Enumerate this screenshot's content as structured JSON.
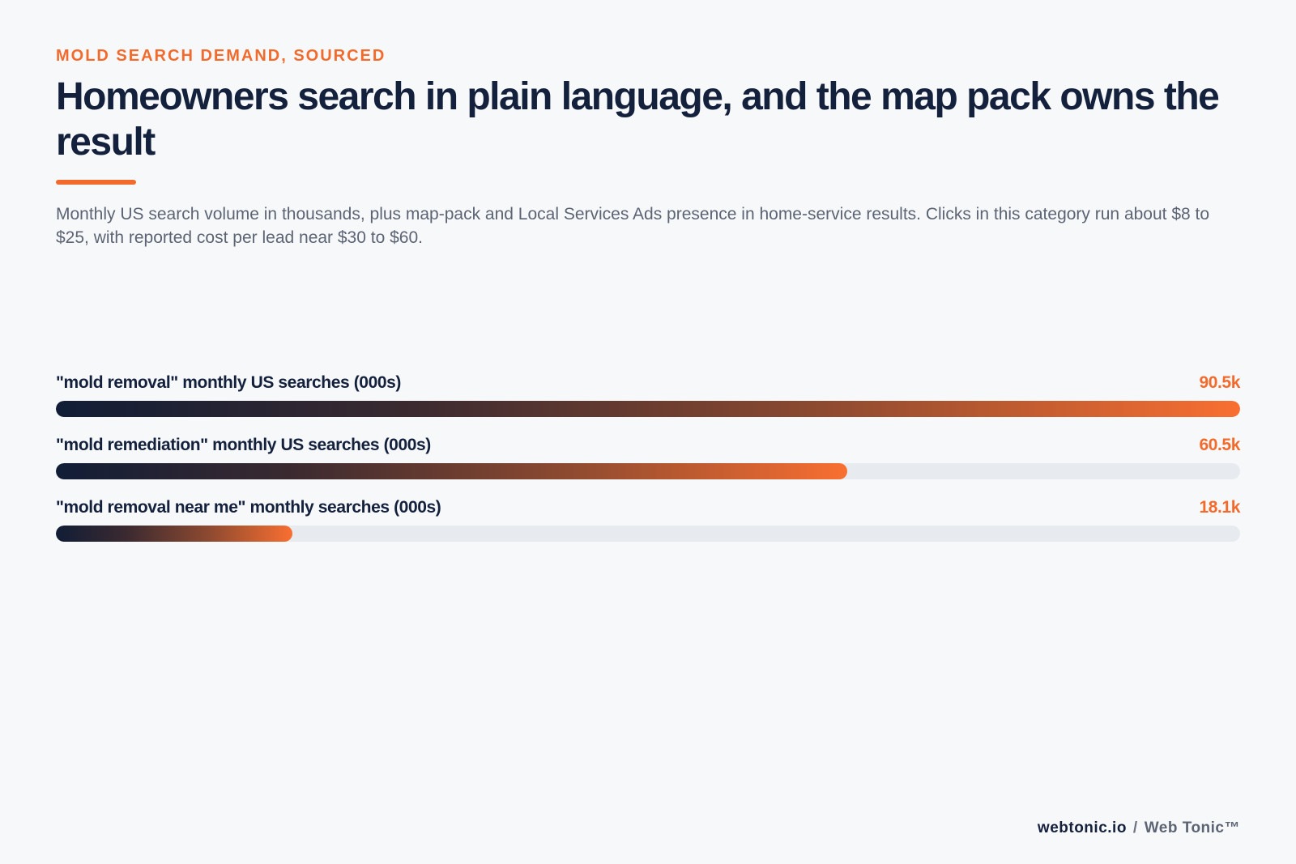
{
  "eyebrow": "MOLD SEARCH DEMAND, SOURCED",
  "title": "Homeowners search in plain language, and the map pack owns the result",
  "subtitle": "Monthly US search volume in thousands, plus map-pack and Local Services Ads presence in home-service results. Clicks in this category run about $8 to $25, with reported cost per lead near $30 to $60.",
  "chart_data": {
    "type": "bar",
    "orientation": "horizontal",
    "title": "Homeowners search in plain language, and the map pack owns the result",
    "subtitle": "Monthly US search volume in thousands, plus map-pack and Local Services Ads presence in home-service results. Clicks in this category run about $8 to $25, with reported cost per lead near $30 to $60.",
    "categories": [
      "\"mold removal\" monthly US searches (000s)",
      "\"mold remediation\" monthly US searches (000s)",
      "\"mold removal near me\" monthly searches (000s)"
    ],
    "values": [
      90.5,
      60.5,
      18.1
    ],
    "value_labels": [
      "90.5k",
      "60.5k",
      "18.1k"
    ],
    "xlim": [
      0,
      90.5
    ],
    "grid": false,
    "legend": "none",
    "colors": {
      "gradient_start": "#111d36",
      "gradient_end": "#f96f31",
      "track": "#e7eaee",
      "value_text": "#f26b2c"
    }
  },
  "footer": {
    "brand": "webtonic.io",
    "separator": "/",
    "name": "Web Tonic™"
  },
  "colors": {
    "accent": "#f26b2c",
    "heading": "#14213d",
    "body_text": "#5c6474",
    "background": "#f7f8fa"
  }
}
